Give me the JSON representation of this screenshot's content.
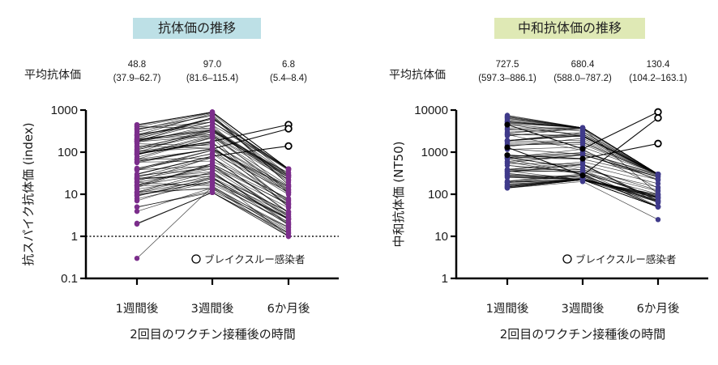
{
  "chart_data": [
    {
      "type": "line",
      "title": "抗体価の推移",
      "title_bg": "#bde0e6",
      "mean_label": "平均抗体価",
      "means": [
        {
          "value": "48.8",
          "ci": "(37.9–62.7)"
        },
        {
          "value": "97.0",
          "ci": "(81.6–115.4)"
        },
        {
          "value": "6.8",
          "ci": "(5.4–8.4)"
        }
      ],
      "ylabel": "抗スパイク抗体価 (index)",
      "xlabel": "2回目のワクチン接種後の時間",
      "categories": [
        "1週間後",
        "3週間後",
        "6か月後"
      ],
      "yscale": "log",
      "ylim": [
        0.1,
        1000
      ],
      "yticks": [
        {
          "value": 1000,
          "label": "1000"
        },
        {
          "value": 100,
          "label": "100"
        },
        {
          "value": 10,
          "label": "10"
        },
        {
          "value": 1,
          "label": "1"
        },
        {
          "value": 0.1,
          "label": "0.1"
        }
      ],
      "reference_line": 1,
      "legend": "ブレイクスルー感染者",
      "legend_placement": "bottom-right",
      "point_color": "#7b2d8b",
      "line_color": "#000000",
      "range_per_timepoint": [
        [
          0.3,
          450
        ],
        [
          11,
          900
        ],
        [
          1,
          450
        ]
      ],
      "breakthrough_6m_values": [
        450,
        360,
        140
      ]
    },
    {
      "type": "line",
      "title": "中和抗体価の推移",
      "title_bg": "#dfe9b5",
      "mean_label": "平均抗体価",
      "means": [
        {
          "value": "727.5",
          "ci": "(597.3–886.1)"
        },
        {
          "value": "680.4",
          "ci": "(588.0–787.2)"
        },
        {
          "value": "130.4",
          "ci": "(104.2–163.1)"
        }
      ],
      "ylabel": "中和抗体価 (NT50)",
      "xlabel": "2回目のワクチン接種後の時間",
      "categories": [
        "1週間後",
        "3週間後",
        "6か月後"
      ],
      "yscale": "log",
      "ylim": [
        1,
        10000
      ],
      "yticks": [
        {
          "value": 10000,
          "label": "10000"
        },
        {
          "value": 1000,
          "label": "1000"
        },
        {
          "value": 100,
          "label": "100"
        },
        {
          "value": 10,
          "label": "10"
        },
        {
          "value": 1,
          "label": "1"
        }
      ],
      "legend": "ブレイクスルー感染者",
      "legend_placement": "bottom-right",
      "point_color": "#3f3a8a",
      "line_color": "#000000",
      "range_per_timepoint": [
        [
          140,
          7500
        ],
        [
          220,
          3800
        ],
        [
          25,
          9000
        ]
      ],
      "breakthrough_6m_values": [
        9000,
        6500,
        1600
      ]
    }
  ]
}
